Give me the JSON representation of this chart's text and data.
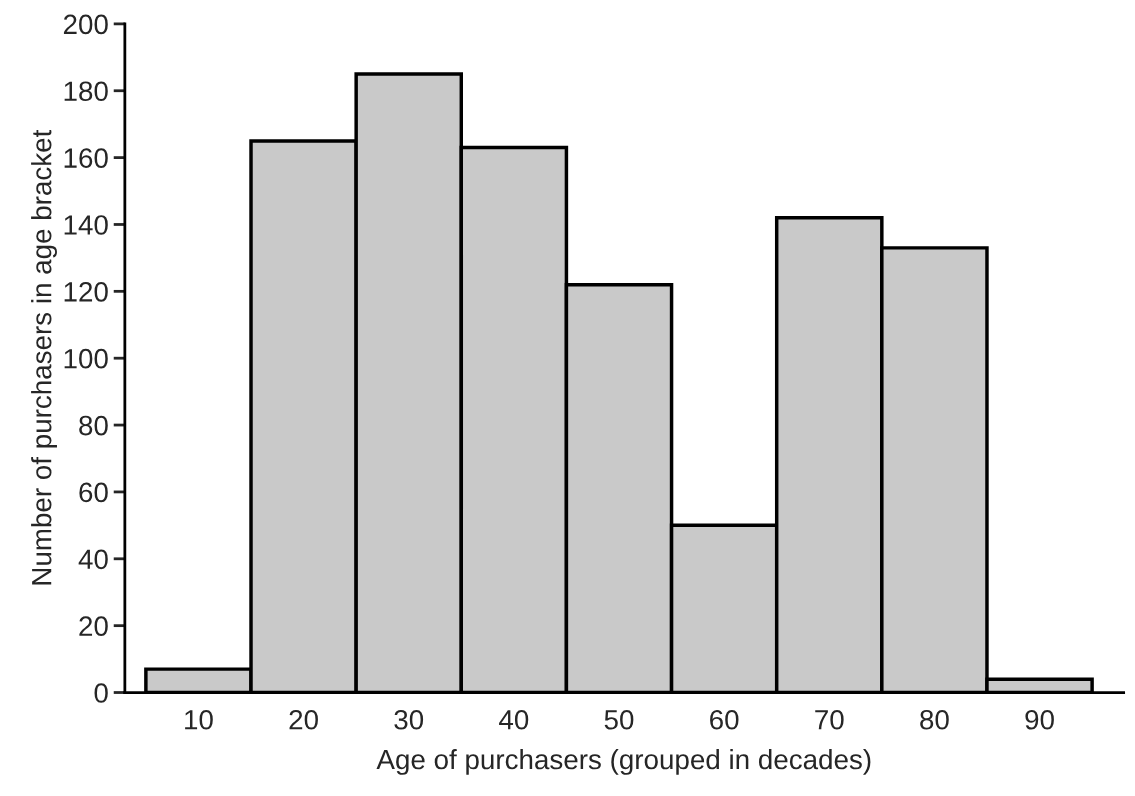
{
  "chart_data": {
    "type": "bar",
    "xlabel": "Age of purchasers (grouped in decades)",
    "ylabel": "Number of purchasers in age bracket",
    "categories": [
      "10",
      "20",
      "30",
      "40",
      "50",
      "60",
      "70",
      "80",
      "90"
    ],
    "values": [
      7,
      165,
      185,
      163,
      122,
      50,
      142,
      133,
      4
    ],
    "color": "#c9c9c9",
    "ylim": [
      0,
      200
    ],
    "yticks": [
      0,
      20,
      40,
      60,
      80,
      100,
      120,
      140,
      160,
      180,
      200
    ],
    "grid": false
  }
}
